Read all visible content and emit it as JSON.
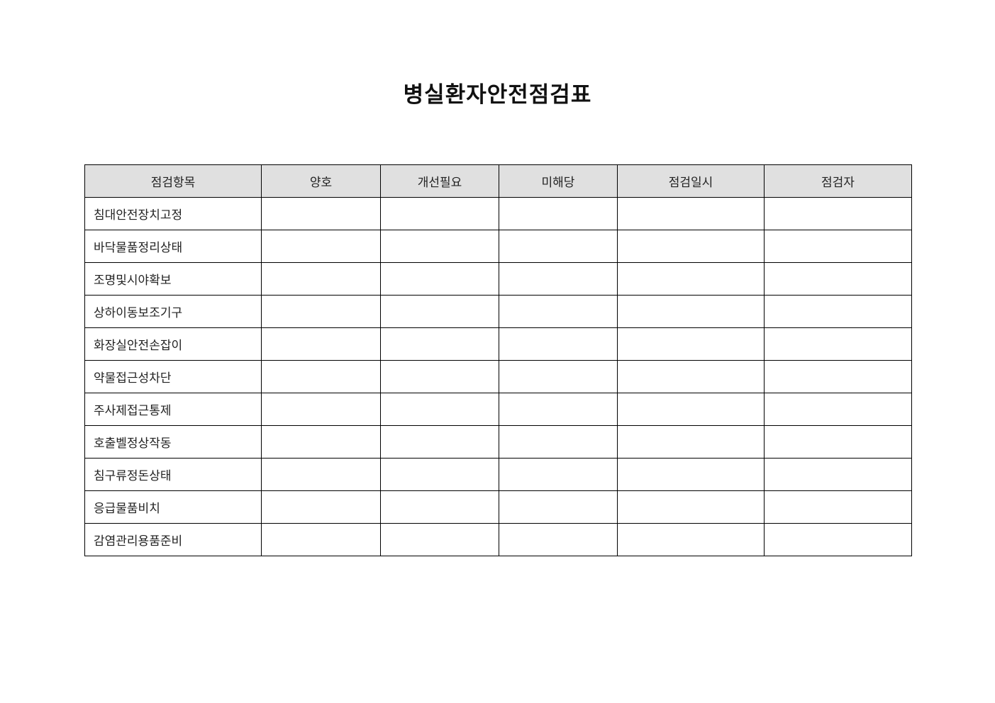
{
  "page": {
    "title": "병실환자안전점검표"
  },
  "table": {
    "headers": [
      "점검항목",
      "양호",
      "개선필요",
      "미해당",
      "점검일시",
      "점검자"
    ],
    "header_background": "#e0e0e0",
    "border_color": "#000000",
    "rows": [
      {
        "item": "침대안전장치고정",
        "good": "",
        "improve": "",
        "na": "",
        "datetime": "",
        "inspector": ""
      },
      {
        "item": "바닥물품정리상태",
        "good": "",
        "improve": "",
        "na": "",
        "datetime": "",
        "inspector": ""
      },
      {
        "item": "조명및시야확보",
        "good": "",
        "improve": "",
        "na": "",
        "datetime": "",
        "inspector": ""
      },
      {
        "item": "상하이동보조기구",
        "good": "",
        "improve": "",
        "na": "",
        "datetime": "",
        "inspector": ""
      },
      {
        "item": "화장실안전손잡이",
        "good": "",
        "improve": "",
        "na": "",
        "datetime": "",
        "inspector": ""
      },
      {
        "item": "약물접근성차단",
        "good": "",
        "improve": "",
        "na": "",
        "datetime": "",
        "inspector": ""
      },
      {
        "item": "주사제접근통제",
        "good": "",
        "improve": "",
        "na": "",
        "datetime": "",
        "inspector": ""
      },
      {
        "item": "호출벨정상작동",
        "good": "",
        "improve": "",
        "na": "",
        "datetime": "",
        "inspector": ""
      },
      {
        "item": "침구류정돈상태",
        "good": "",
        "improve": "",
        "na": "",
        "datetime": "",
        "inspector": ""
      },
      {
        "item": "응급물품비치",
        "good": "",
        "improve": "",
        "na": "",
        "datetime": "",
        "inspector": ""
      },
      {
        "item": "감염관리용품준비",
        "good": "",
        "improve": "",
        "na": "",
        "datetime": "",
        "inspector": ""
      }
    ]
  }
}
